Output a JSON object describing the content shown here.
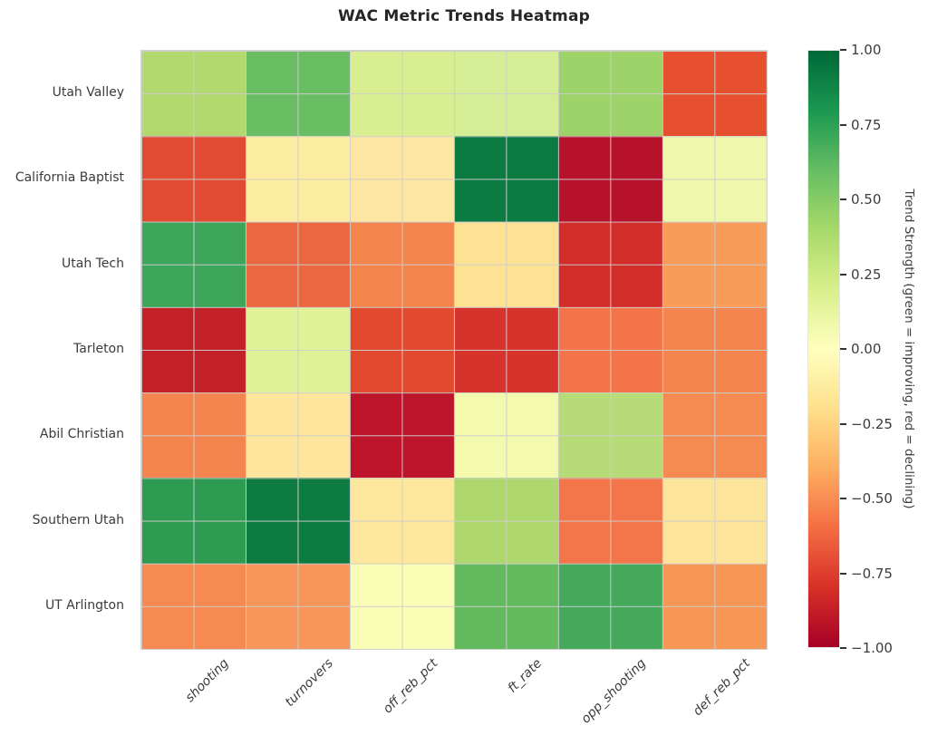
{
  "title": "WAC Metric Trends Heatmap",
  "chart_data": {
    "type": "heatmap",
    "title": "WAC Metric Trends Heatmap",
    "rows": [
      "Utah Valley",
      "California Baptist",
      "Utah Tech",
      "Tarleton",
      "Abil Christian",
      "Southern Utah",
      "UT Arlington"
    ],
    "columns": [
      "shooting",
      "turnovers",
      "off_reb_pct",
      "ft_rate",
      "opp_shooting",
      "def_reb_pct"
    ],
    "values": [
      [
        0.35,
        0.6,
        0.2,
        0.18,
        0.42,
        -0.65
      ],
      [
        -0.65,
        -0.05,
        -0.08,
        0.88,
        -0.9,
        0.05
      ],
      [
        0.65,
        -0.55,
        -0.45,
        -0.1,
        -0.78,
        -0.38
      ],
      [
        -0.85,
        0.18,
        -0.68,
        -0.78,
        -0.52,
        -0.47
      ],
      [
        -0.47,
        -0.1,
        -0.88,
        0.05,
        0.3,
        -0.43
      ],
      [
        0.7,
        0.85,
        -0.08,
        0.35,
        -0.52,
        -0.1
      ],
      [
        -0.45,
        -0.38,
        0.0,
        0.55,
        0.62,
        -0.4
      ]
    ],
    "cell_colors": [
      [
        "#b1d96e",
        "#69bd63",
        "#d8ee90",
        "#d5ee96",
        "#9ed369",
        "#e6502e"
      ],
      [
        "#e04b32",
        "#fcec9f",
        "#fde6a1",
        "#0c7b41",
        "#b6122c",
        "#eef7ab"
      ],
      [
        "#3ea65b",
        "#eb6740",
        "#f5854f",
        "#fde294",
        "#d22d28",
        "#f89c59"
      ],
      [
        "#c22127",
        "#e0f295",
        "#e24a30",
        "#d5332b",
        "#f37448",
        "#f5854e"
      ],
      [
        "#f5854f",
        "#fde59b",
        "#bd152b",
        "#f3f9ad",
        "#b7dc77",
        "#f68b52"
      ],
      [
        "#2d9b51",
        "#0e7c41",
        "#fce79c",
        "#aed86d",
        "#f2764a",
        "#fde49b"
      ],
      [
        "#f68a50",
        "#f7955a",
        "#fafdb6",
        "#63b95e",
        "#44a95a",
        "#f79655"
      ]
    ],
    "vmin": -1.0,
    "vmax": 1.0,
    "colormap": "RdYlGn",
    "grid": true,
    "legend_position": "right",
    "colorbar": {
      "label": "Trend Strength (green = improving, red = declining)",
      "ticks": [
        "1.00",
        "0.75",
        "0.50",
        "0.25",
        "0.00",
        "−0.25",
        "−0.50",
        "−0.75",
        "−1.00"
      ],
      "gradient_stops": [
        "#006837",
        "#1a9850",
        "#66bd63",
        "#a6d96a",
        "#d9ef8b",
        "#ffffbf",
        "#fee08b",
        "#fdae61",
        "#f46d43",
        "#d73027",
        "#a50026"
      ]
    }
  },
  "style": {
    "background": "#ffffff",
    "grid_line_color": "#cdcdcd",
    "title_color": "#262626",
    "tick_text_color": "#3b3b3b"
  }
}
